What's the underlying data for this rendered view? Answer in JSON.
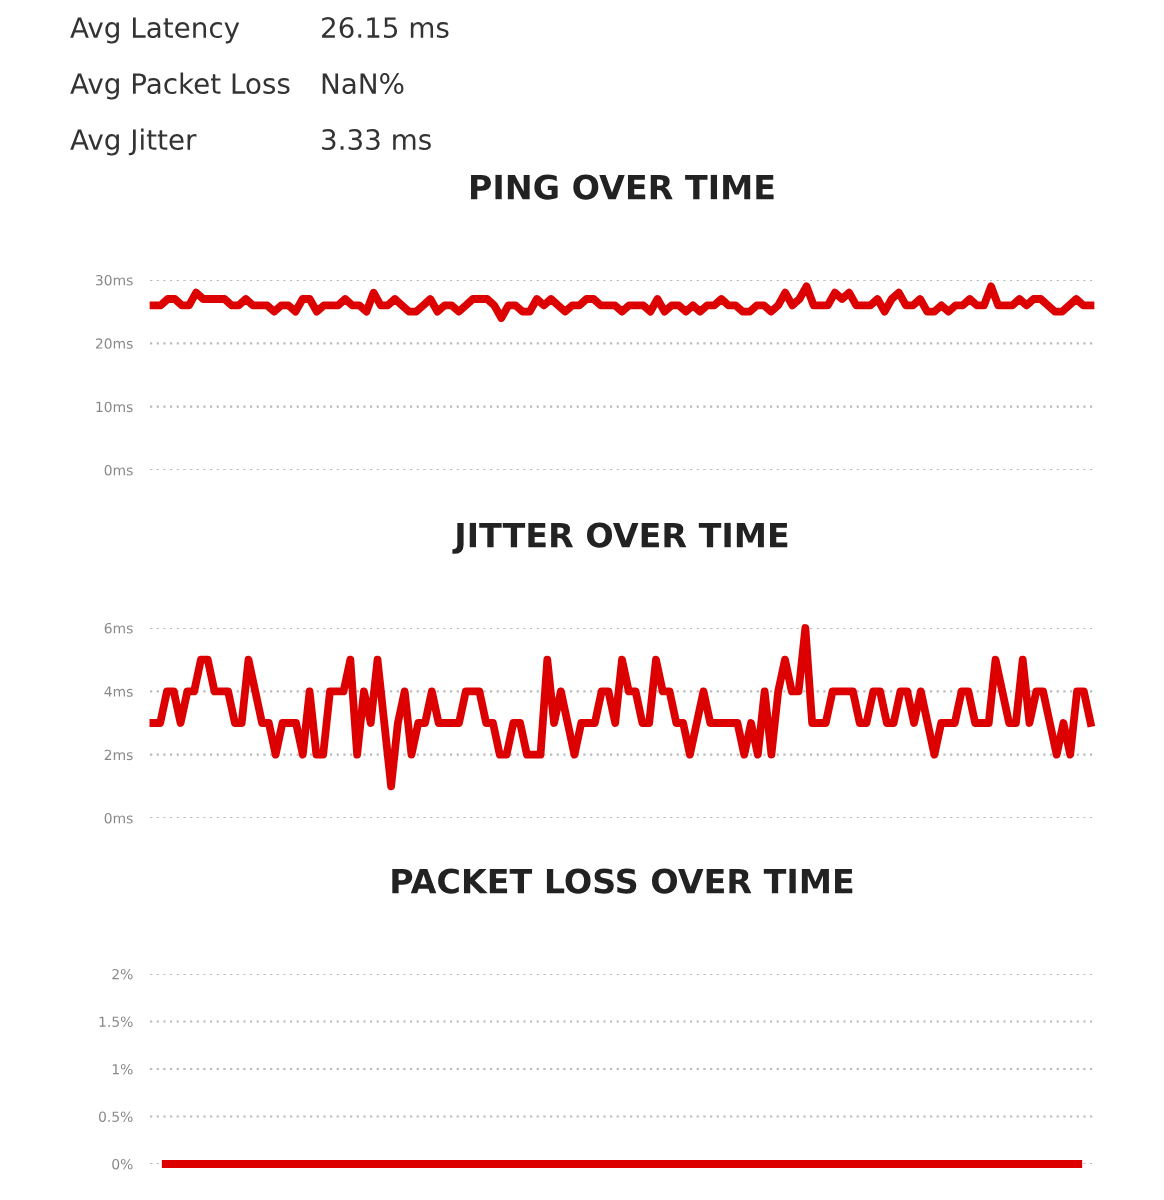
{
  "chart_data": [
    {
      "type": "other",
      "annotations": [
        "Avg Latency",
        "26.15 ms",
        "Avg Packet Loss",
        "NaN%",
        "Avg Jitter",
        "3.33 ms"
      ]
    },
    {
      "type": "line",
      "title": "PING OVER TIME",
      "color": "#dd0000",
      "grid": "y",
      "tick_labels": "y",
      "ylim": [
        0,
        30
      ],
      "yticks": [
        {
          "value": 0,
          "label": "0ms"
        },
        {
          "value": 10,
          "label": "10ms"
        },
        {
          "value": 20,
          "label": "20ms"
        },
        {
          "value": 30,
          "label": "30ms"
        }
      ],
      "values": [
        26,
        26,
        27,
        27,
        26,
        26,
        28,
        27,
        27,
        27,
        27,
        26,
        26,
        27,
        26,
        26,
        26,
        25,
        26,
        26,
        25,
        27,
        27,
        25,
        26,
        26,
        26,
        27,
        26,
        26,
        25,
        28,
        26,
        26,
        27,
        26,
        25,
        25,
        26,
        27,
        25,
        26,
        26,
        25,
        26,
        27,
        27,
        27,
        26,
        24,
        26,
        26,
        25,
        25,
        27,
        26,
        27,
        26,
        25,
        26,
        26,
        27,
        27,
        26,
        26,
        26,
        25,
        26,
        26,
        26,
        25,
        27,
        25,
        26,
        26,
        25,
        26,
        25,
        26,
        26,
        27,
        26,
        26,
        25,
        25,
        26,
        26,
        25,
        26,
        28,
        26,
        27,
        29,
        26,
        26,
        26,
        28,
        27,
        28,
        26,
        26,
        26,
        27,
        25,
        27,
        28,
        26,
        26,
        27,
        25,
        25,
        26,
        25,
        26,
        26,
        27,
        26,
        26,
        29,
        26,
        26,
        26,
        27,
        26,
        27,
        27,
        26,
        25,
        25,
        26,
        27,
        26,
        26
      ]
    },
    {
      "type": "line",
      "title": "JITTER OVER TIME",
      "color": "#dd0000",
      "grid": "y",
      "tick_labels": "y",
      "ylim": [
        0,
        6
      ],
      "yticks": [
        {
          "value": 0,
          "label": "0ms"
        },
        {
          "value": 2,
          "label": "2ms"
        },
        {
          "value": 4,
          "label": "4ms"
        },
        {
          "value": 6,
          "label": "6ms"
        }
      ],
      "values": [
        3,
        3,
        4,
        4,
        3,
        4,
        4,
        5,
        5,
        4,
        4,
        4,
        3,
        3,
        5,
        4,
        3,
        3,
        2,
        3,
        3,
        3,
        2,
        4,
        2,
        2,
        4,
        4,
        4,
        5,
        2,
        4,
        3,
        5,
        3,
        1,
        3,
        4,
        2,
        3,
        3,
        4,
        3,
        3,
        3,
        3,
        4,
        4,
        4,
        3,
        3,
        2,
        2,
        3,
        3,
        2,
        2,
        2,
        5,
        3,
        4,
        3,
        2,
        3,
        3,
        3,
        4,
        4,
        3,
        5,
        4,
        4,
        3,
        3,
        5,
        4,
        4,
        3,
        3,
        2,
        3,
        4,
        3,
        3,
        3,
        3,
        3,
        2,
        3,
        2,
        4,
        2,
        4,
        5,
        4,
        4,
        6,
        3,
        3,
        3,
        4,
        4,
        4,
        4,
        3,
        3,
        4,
        4,
        3,
        3,
        4,
        4,
        3,
        4,
        3,
        2,
        3,
        3,
        3,
        4,
        4,
        3,
        3,
        3,
        5,
        4,
        3,
        3,
        5,
        3,
        4,
        4,
        3,
        2,
        3,
        2,
        4,
        4,
        3
      ]
    },
    {
      "type": "line",
      "title": "PACKET LOSS OVER TIME",
      "color": "#dd0000",
      "grid": "y",
      "tick_labels": "y",
      "ylim": [
        0,
        2
      ],
      "yticks": [
        {
          "value": 0,
          "label": "0%"
        },
        {
          "value": 0.5,
          "label": "0.5%"
        },
        {
          "value": 1,
          "label": "1%"
        },
        {
          "value": 1.5,
          "label": "1.5%"
        },
        {
          "value": 2,
          "label": "2%"
        }
      ],
      "values": [
        0,
        0,
        0,
        0,
        0,
        0,
        0,
        0,
        0,
        0,
        0,
        0,
        0,
        0,
        0,
        0,
        0,
        0,
        0,
        0,
        0,
        0,
        0,
        0,
        0,
        0,
        0,
        0,
        0,
        0
      ]
    }
  ]
}
